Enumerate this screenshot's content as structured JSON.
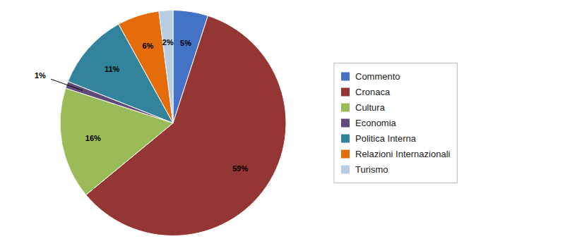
{
  "chart_data": {
    "type": "pie",
    "categories": [
      "Commento",
      "Cronaca",
      "Cultura",
      "Economia",
      "Politica Interna",
      "Relazioni Internazionali",
      "Turismo"
    ],
    "values": [
      5,
      59,
      16,
      1,
      11,
      6,
      2
    ],
    "value_labels": [
      "5%",
      "59%",
      "16%",
      "1%",
      "11%",
      "6%",
      "2%"
    ],
    "colors": [
      "#4472C4",
      "#943634",
      "#9BBB59",
      "#604A7B",
      "#31849B",
      "#E46C0A",
      "#B8CCE4"
    ],
    "data_labels": true,
    "legend": "right"
  }
}
